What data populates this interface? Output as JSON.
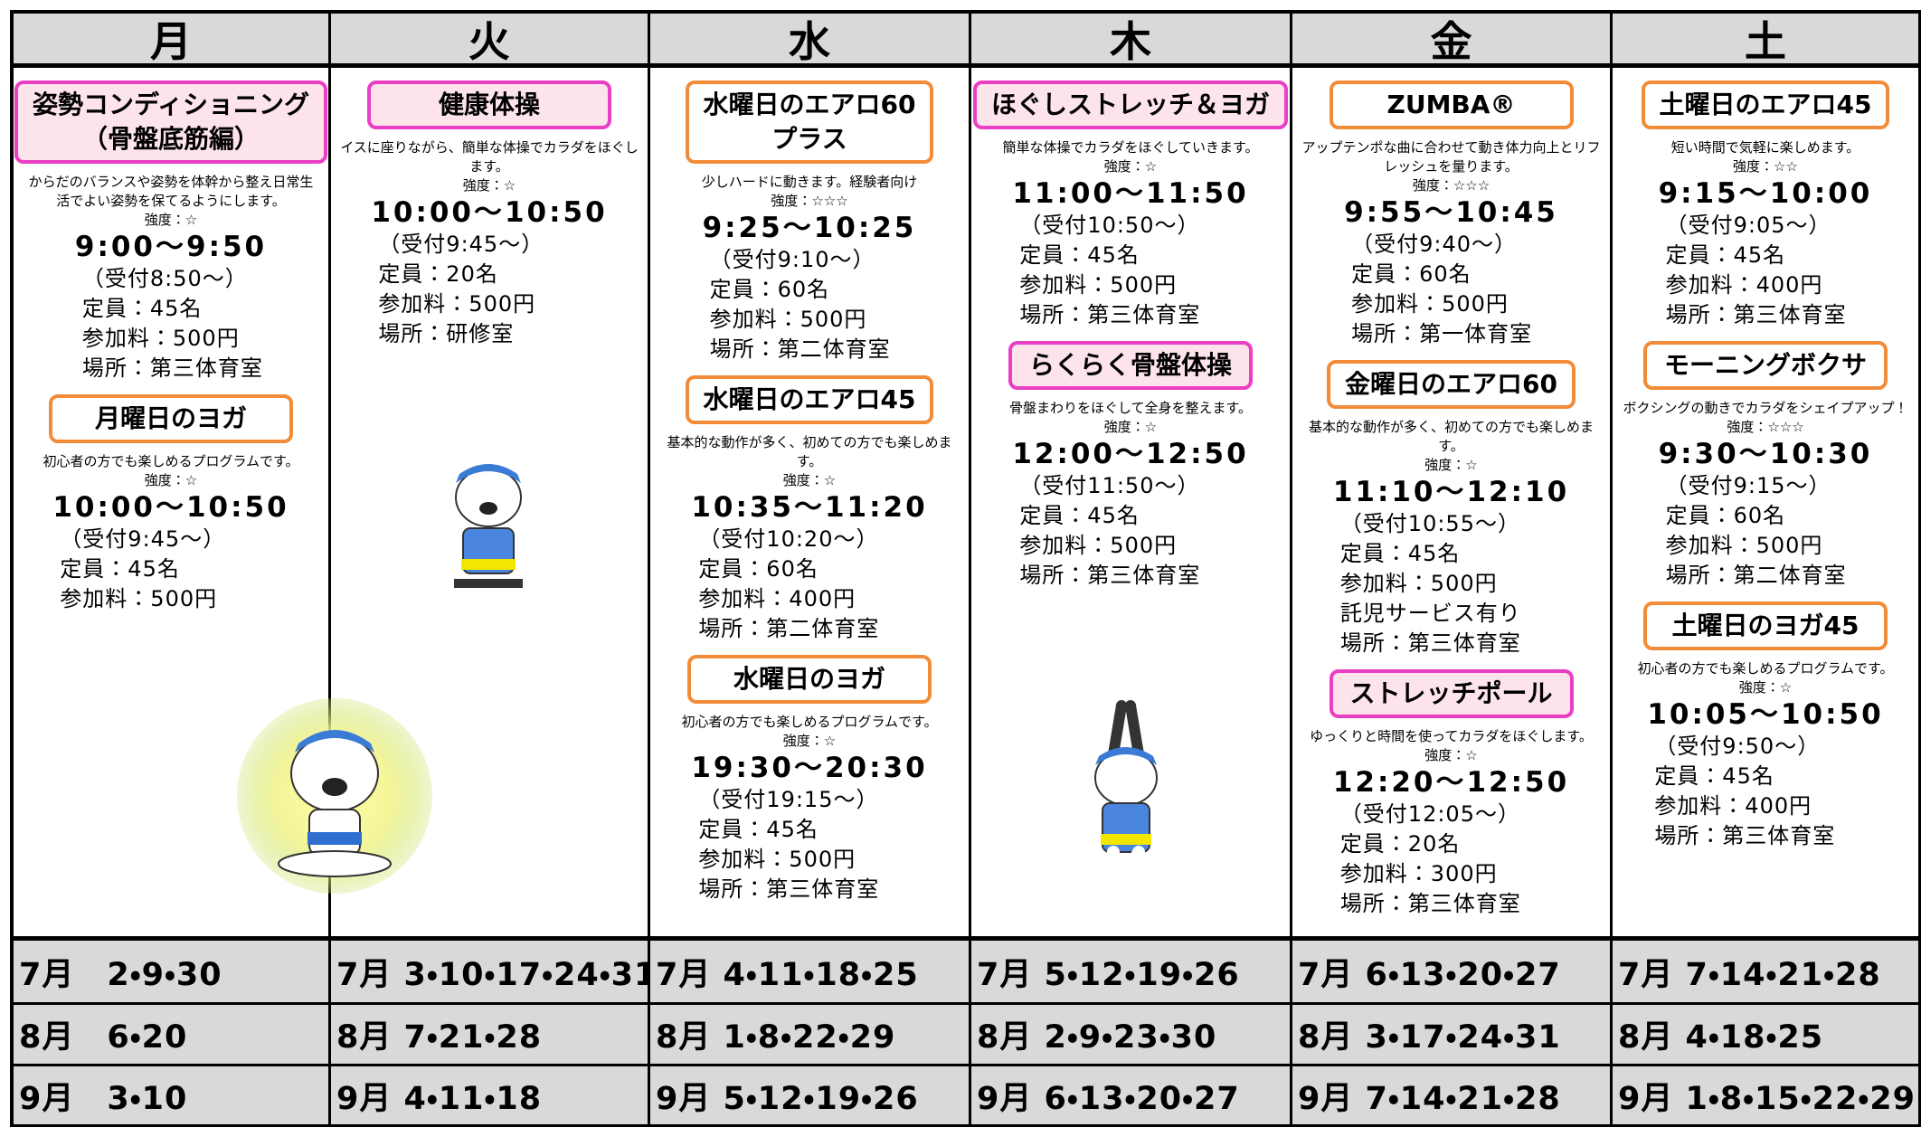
{
  "days": [
    {
      "name": "月",
      "classes": [
        {
          "title": [
            "姿勢コンディショニング",
            "（骨盤底筋編）"
          ],
          "style": "pink",
          "description": "からだのバランスや姿勢を体幹から整え日常生活でよい姿勢を保てるようにします。",
          "intensity": "強度：☆",
          "time": "9:00〜9:50",
          "details": [
            "（受付8:50〜）",
            "定員：45名",
            "参加料：500円",
            "場所：第三体育室"
          ]
        },
        {
          "title": [
            "月曜日のヨガ"
          ],
          "style": "orange",
          "description": "初心者の方でも楽しめるプログラムです。",
          "intensity": "強度：☆",
          "time": "10:00〜10:50",
          "details": [
            "（受付9:45〜）",
            "定員：45名",
            "参加料：500円"
          ]
        }
      ]
    },
    {
      "name": "火",
      "classes": [
        {
          "title": [
            "健康体操"
          ],
          "style": "pink",
          "description": "イスに座りながら、簡単な体操でカラダをほぐします。",
          "intensity": "強度：☆",
          "time": "10:00〜10:50",
          "details": [
            "（受付9:45〜）",
            "定員：20名",
            "参加料：500円",
            "場所：研修室"
          ]
        }
      ]
    },
    {
      "name": "水",
      "classes": [
        {
          "title": [
            "水曜日のエアロ60",
            "プラス"
          ],
          "style": "orange",
          "description": "少しハードに動きます。経験者向け",
          "intensity": "強度：☆☆☆",
          "time": "9:25〜10:25",
          "details": [
            "（受付9:10〜）",
            "定員：60名",
            "参加料：500円",
            "場所：第二体育室"
          ]
        },
        {
          "title": [
            "水曜日のエアロ45"
          ],
          "style": "orange",
          "description": "基本的な動作が多く、初めての方でも楽しめます。",
          "intensity": "強度：☆",
          "time": "10:35〜11:20",
          "details": [
            "（受付10:20〜）",
            "定員：60名",
            "参加料：400円",
            "場所：第二体育室"
          ]
        },
        {
          "title": [
            "水曜日のヨガ"
          ],
          "style": "orange",
          "description": "初心者の方でも楽しめるプログラムです。",
          "intensity": "強度：☆",
          "time": "19:30〜20:30",
          "details": [
            "（受付19:15〜）",
            "定員：45名",
            "参加料：500円",
            "場所：第三体育室"
          ]
        }
      ]
    },
    {
      "name": "木",
      "classes": [
        {
          "title": [
            "ほぐしストレッチ＆ヨガ"
          ],
          "style": "pink",
          "description": "簡単な体操でカラダをほぐしていきます。",
          "intensity": "強度：☆",
          "time": "11:00〜11:50",
          "details": [
            "（受付10:50〜）",
            "定員：45名",
            "参加料：500円",
            "場所：第三体育室"
          ]
        },
        {
          "title": [
            "らくらく骨盤体操"
          ],
          "style": "pink",
          "description": "骨盤まわりをほぐして全身を整えます。",
          "intensity": "強度：☆",
          "time": "12:00〜12:50",
          "details": [
            "（受付11:50〜）",
            "定員：45名",
            "参加料：500円",
            "場所：第三体育室"
          ]
        }
      ]
    },
    {
      "name": "金",
      "classes": [
        {
          "title": [
            "ZUMBA®"
          ],
          "style": "orange",
          "description": "アップテンポな曲に合わせて動き体力向上とリフレッシュを量ります。",
          "intensity": "強度：☆☆☆",
          "time": "9:55〜10:45",
          "details": [
            "（受付9:40〜）",
            "定員：60名",
            "参加料：500円",
            "場所：第一体育室"
          ]
        },
        {
          "title": [
            "金曜日のエアロ60"
          ],
          "style": "orange",
          "description": "基本的な動作が多く、初めての方でも楽しめます。",
          "intensity": "強度：☆",
          "time": "11:10〜12:10",
          "details": [
            "（受付10:55〜）",
            "定員：45名",
            "参加料：500円",
            "託児サービス有り",
            "場所：第三体育室"
          ]
        },
        {
          "title": [
            "ストレッチポール"
          ],
          "style": "pink",
          "description": "ゆっくりと時間を使ってカラダをほぐします。",
          "intensity": "強度：☆",
          "time": "12:20〜12:50",
          "details": [
            "（受付12:05〜）",
            "定員：20名",
            "参加料：300円",
            "場所：第三体育室"
          ]
        }
      ]
    },
    {
      "name": "土",
      "classes": [
        {
          "title": [
            "土曜日のエアロ45"
          ],
          "style": "orange",
          "description": "短い時間で気軽に楽しめます。",
          "intensity": "強度：☆☆",
          "time": "9:15〜10:00",
          "details": [
            "（受付9:05〜）",
            "定員：45名",
            "参加料：400円",
            "場所：第三体育室"
          ]
        },
        {
          "title": [
            "モーニングボクサ"
          ],
          "style": "orange",
          "description": "ボクシングの動きでカラダをシェイプアップ！",
          "intensity": "強度：☆☆☆",
          "time": "9:30〜10:30",
          "details": [
            "（受付9:15〜）",
            "定員：60名",
            "参加料：500円",
            "場所：第二体育室"
          ]
        },
        {
          "title": [
            "土曜日のヨガ45"
          ],
          "style": "orange",
          "description": "初心者の方でも楽しめるプログラムです。",
          "intensity": "強度：☆",
          "time": "10:05〜10:50",
          "details": [
            "（受付9:50〜）",
            "定員：45名",
            "参加料：400円",
            "場所：第三体育室"
          ]
        }
      ]
    }
  ],
  "dates": [
    [
      "7月　2・9・30",
      "7月 3・10・17・24・31",
      "7月 4・11・18・25",
      "7月 5・12・19・26",
      "7月 6・13・20・27",
      "7月 7・14・21・28"
    ],
    [
      "8月　6・20",
      "8月 7・21・28",
      "8月 1・8・22・29",
      "8月 2・9・23・30",
      "8月 3・17・24・31",
      "8月 4・18・25"
    ],
    [
      "9月　3・10",
      "9月 4・11・18",
      "9月 5・12・19・26",
      "9月 6・13・20・27",
      "9月 7・14・21・28",
      "9月 1・8・15・22・29"
    ]
  ]
}
